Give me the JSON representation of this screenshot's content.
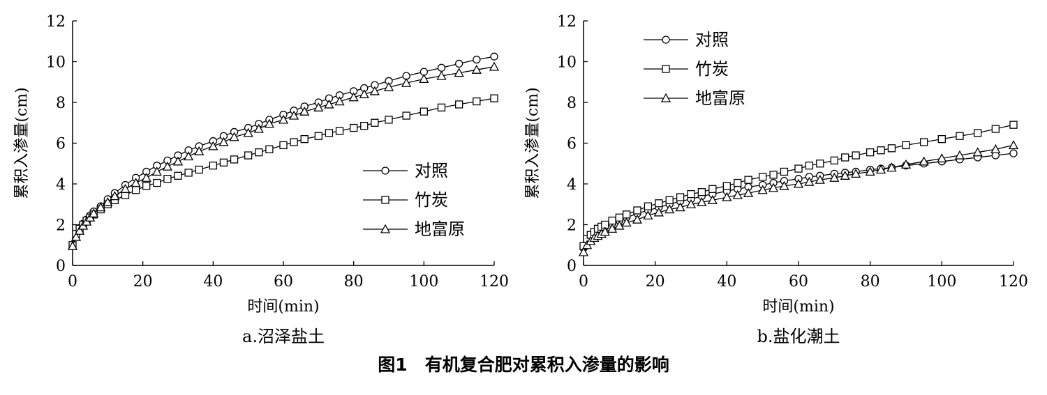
{
  "figure_caption": "图1　有机复合肥对累积入渗量的影响",
  "chart_data": [
    {
      "type": "line",
      "subcaption": "a.沼泽盐土",
      "xlabel": "时间(min)",
      "ylabel": "累积入渗量(cm)",
      "xlim": [
        0,
        120
      ],
      "ylim": [
        0,
        12
      ],
      "xticks": [
        "0",
        "20",
        "40",
        "60",
        "80",
        "100",
        "120"
      ],
      "yticks": [
        "0",
        "2",
        "4",
        "6",
        "8",
        "10",
        "12"
      ],
      "legend_position": "bottom-right",
      "grid": false,
      "series": [
        {
          "name": "对照",
          "marker": "circle",
          "x": [
            0,
            1,
            2,
            3,
            4,
            5,
            6,
            8,
            10,
            12,
            15,
            18,
            21,
            24,
            27,
            30,
            33,
            36,
            40,
            43,
            46,
            50,
            53,
            56,
            60,
            63,
            66,
            70,
            73,
            76,
            80,
            83,
            86,
            90,
            95,
            100,
            105,
            110,
            115,
            120
          ],
          "y": [
            1.0,
            1.55,
            1.85,
            2.05,
            2.25,
            2.45,
            2.65,
            2.9,
            3.25,
            3.55,
            3.95,
            4.3,
            4.6,
            4.9,
            5.15,
            5.4,
            5.65,
            5.85,
            6.1,
            6.35,
            6.55,
            6.75,
            6.95,
            7.15,
            7.4,
            7.6,
            7.8,
            8.0,
            8.2,
            8.35,
            8.55,
            8.7,
            8.85,
            9.05,
            9.3,
            9.5,
            9.7,
            9.9,
            10.1,
            10.25
          ]
        },
        {
          "name": "竹炭",
          "marker": "square",
          "x": [
            0,
            1,
            2,
            3,
            4,
            5,
            6,
            8,
            10,
            12,
            15,
            18,
            21,
            24,
            27,
            30,
            33,
            36,
            40,
            43,
            46,
            50,
            53,
            56,
            60,
            63,
            66,
            70,
            73,
            76,
            80,
            83,
            86,
            90,
            95,
            100,
            105,
            110,
            115,
            120
          ],
          "y": [
            1.0,
            1.55,
            1.8,
            2.0,
            2.2,
            2.35,
            2.5,
            2.75,
            3.0,
            3.2,
            3.45,
            3.7,
            3.9,
            4.05,
            4.25,
            4.4,
            4.55,
            4.7,
            4.9,
            5.05,
            5.2,
            5.4,
            5.55,
            5.7,
            5.9,
            6.05,
            6.2,
            6.35,
            6.5,
            6.6,
            6.75,
            6.85,
            7.0,
            7.15,
            7.35,
            7.55,
            7.75,
            7.9,
            8.05,
            8.2
          ]
        },
        {
          "name": "地富原",
          "marker": "triangle",
          "x": [
            0,
            1,
            2,
            3,
            4,
            5,
            6,
            8,
            10,
            12,
            15,
            18,
            21,
            24,
            27,
            30,
            33,
            36,
            40,
            43,
            46,
            50,
            53,
            56,
            60,
            63,
            66,
            70,
            73,
            76,
            80,
            83,
            86,
            90,
            95,
            100,
            105,
            110,
            115,
            120
          ],
          "y": [
            0.95,
            1.4,
            1.7,
            1.95,
            2.15,
            2.35,
            2.55,
            2.85,
            3.1,
            3.4,
            3.75,
            4.05,
            4.3,
            4.6,
            4.85,
            5.1,
            5.35,
            5.6,
            5.85,
            6.05,
            6.3,
            6.5,
            6.7,
            6.95,
            7.15,
            7.35,
            7.55,
            7.75,
            7.9,
            8.05,
            8.25,
            8.4,
            8.55,
            8.75,
            8.95,
            9.15,
            9.3,
            9.45,
            9.6,
            9.75
          ]
        }
      ]
    },
    {
      "type": "line",
      "subcaption": "b.盐化潮土",
      "xlabel": "时间(min)",
      "ylabel": "累积入渗量(cm)",
      "xlim": [
        0,
        120
      ],
      "ylim": [
        0,
        12
      ],
      "xticks": [
        "0",
        "20",
        "40",
        "60",
        "80",
        "100",
        "120"
      ],
      "yticks": [
        "0",
        "2",
        "4",
        "6",
        "8",
        "10",
        "12"
      ],
      "legend_position": "top-left",
      "grid": false,
      "series": [
        {
          "name": "对照",
          "marker": "circle",
          "x": [
            0,
            1,
            2,
            3,
            4,
            5,
            6,
            8,
            10,
            12,
            15,
            18,
            21,
            24,
            27,
            30,
            33,
            36,
            40,
            43,
            46,
            50,
            53,
            56,
            60,
            63,
            66,
            70,
            73,
            76,
            80,
            83,
            86,
            90,
            95,
            100,
            105,
            110,
            115,
            120
          ],
          "y": [
            0.85,
            1.2,
            1.4,
            1.55,
            1.7,
            1.8,
            1.9,
            2.05,
            2.2,
            2.35,
            2.55,
            2.7,
            2.85,
            3.0,
            3.15,
            3.25,
            3.4,
            3.5,
            3.65,
            3.75,
            3.85,
            3.95,
            4.05,
            4.15,
            4.25,
            4.35,
            4.4,
            4.5,
            4.55,
            4.6,
            4.7,
            4.75,
            4.8,
            4.9,
            5.0,
            5.1,
            5.2,
            5.3,
            5.4,
            5.5
          ]
        },
        {
          "name": "竹炭",
          "marker": "square",
          "x": [
            0,
            1,
            2,
            3,
            4,
            5,
            6,
            8,
            10,
            12,
            15,
            18,
            21,
            24,
            27,
            30,
            33,
            36,
            40,
            43,
            46,
            50,
            53,
            56,
            60,
            63,
            66,
            70,
            73,
            76,
            80,
            83,
            86,
            90,
            95,
            100,
            105,
            110,
            115,
            120
          ],
          "y": [
            0.95,
            1.3,
            1.5,
            1.65,
            1.8,
            1.9,
            2.0,
            2.2,
            2.35,
            2.5,
            2.7,
            2.9,
            3.05,
            3.2,
            3.35,
            3.5,
            3.6,
            3.75,
            3.9,
            4.05,
            4.2,
            4.35,
            4.45,
            4.6,
            4.75,
            4.9,
            5.0,
            5.15,
            5.3,
            5.4,
            5.55,
            5.65,
            5.75,
            5.9,
            6.05,
            6.2,
            6.35,
            6.5,
            6.7,
            6.9
          ]
        },
        {
          "name": "地富原",
          "marker": "triangle",
          "x": [
            0,
            1,
            2,
            3,
            4,
            5,
            6,
            8,
            10,
            12,
            15,
            18,
            21,
            24,
            27,
            30,
            33,
            36,
            40,
            43,
            46,
            50,
            53,
            56,
            60,
            63,
            66,
            70,
            73,
            76,
            80,
            83,
            86,
            90,
            95,
            100,
            105,
            110,
            115,
            120
          ],
          "y": [
            0.65,
            1.0,
            1.2,
            1.35,
            1.45,
            1.55,
            1.65,
            1.8,
            1.95,
            2.1,
            2.25,
            2.45,
            2.6,
            2.75,
            2.85,
            3.0,
            3.1,
            3.2,
            3.35,
            3.45,
            3.55,
            3.7,
            3.8,
            3.9,
            4.0,
            4.1,
            4.2,
            4.3,
            4.4,
            4.5,
            4.6,
            4.7,
            4.8,
            4.95,
            5.1,
            5.25,
            5.4,
            5.55,
            5.7,
            5.9
          ]
        }
      ]
    }
  ]
}
